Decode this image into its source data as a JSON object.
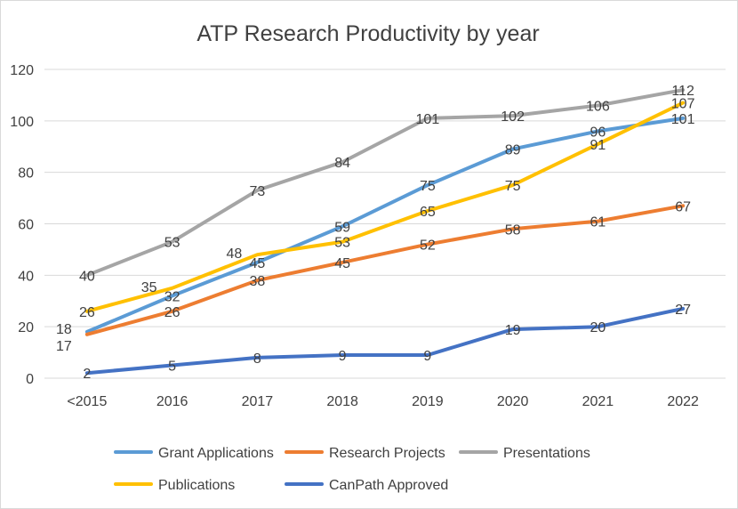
{
  "chart_data": {
    "type": "line",
    "title": "ATP Research Productivity by year",
    "categories": [
      "<2015",
      "2016",
      "2017",
      "2018",
      "2019",
      "2020",
      "2021",
      "2022"
    ],
    "ylim": [
      0,
      120
    ],
    "yticks": [
      0,
      20,
      40,
      60,
      80,
      100,
      120
    ],
    "grid": true,
    "legend_position": "bottom",
    "series": [
      {
        "name": "Grant Applications",
        "color": "#5B9BD5",
        "values": [
          18,
          32,
          45,
          59,
          75,
          89,
          96,
          101
        ]
      },
      {
        "name": "Research Projects",
        "color": "#ED7D31",
        "values": [
          17,
          26,
          38,
          45,
          52,
          58,
          61,
          67
        ]
      },
      {
        "name": "Presentations",
        "color": "#A5A5A5",
        "values": [
          40,
          53,
          73,
          84,
          101,
          102,
          106,
          112
        ]
      },
      {
        "name": "Publications",
        "color": "#FFC000",
        "values": [
          26,
          35,
          48,
          53,
          65,
          75,
          91,
          107
        ]
      },
      {
        "name": "CanPath Approved",
        "color": "#4472C4",
        "values": [
          2,
          5,
          8,
          9,
          9,
          19,
          20,
          27
        ]
      }
    ]
  }
}
